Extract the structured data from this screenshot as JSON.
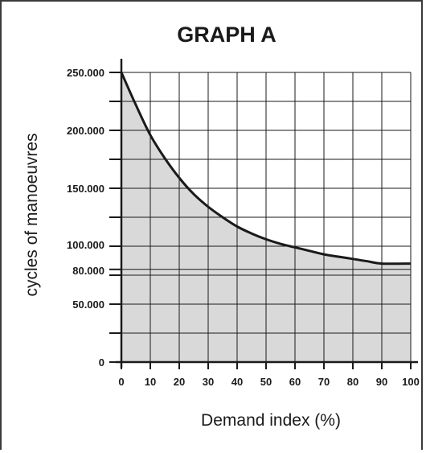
{
  "chart_data": {
    "type": "area",
    "title": "GRAPH A",
    "xlabel": "Demand index (%)",
    "ylabel": "cycles of manoeuvres",
    "x_ticks": [
      "0",
      "10",
      "20",
      "30",
      "40",
      "50",
      "60",
      "70",
      "80",
      "90",
      "100"
    ],
    "y_ticks": [
      {
        "value": 0,
        "label": "0"
      },
      {
        "value": 50000,
        "label": "50.000"
      },
      {
        "value": 80000,
        "label": "80.000"
      },
      {
        "value": 100000,
        "label": "100.000"
      },
      {
        "value": 150000,
        "label": "150.000"
      },
      {
        "value": 200000,
        "label": "200.000"
      },
      {
        "value": 250000,
        "label": "250.000"
      }
    ],
    "xlim": [
      0,
      100
    ],
    "ylim": [
      0,
      250000
    ],
    "grid": true,
    "series": [
      {
        "x": [
          0,
          5,
          10,
          15,
          20,
          25,
          30,
          35,
          40,
          45,
          50,
          55,
          60,
          65,
          70,
          75,
          80,
          85,
          90,
          100
        ],
        "y": [
          250000,
          222000,
          196000,
          176000,
          159000,
          145000,
          134000,
          125000,
          117000,
          111000,
          106000,
          102000,
          99000,
          96000,
          93000,
          91000,
          89000,
          87000,
          85000,
          85000
        ]
      }
    ],
    "colors": {
      "fill": "#d9d9d9",
      "line": "#1a1a1a",
      "grid": "#1a1a1a"
    }
  }
}
